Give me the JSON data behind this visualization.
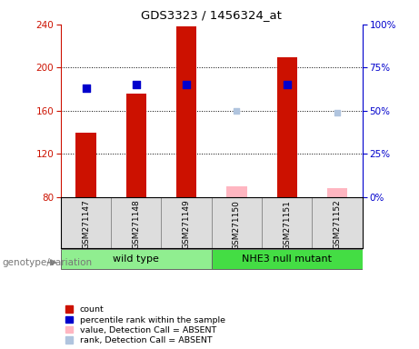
{
  "title": "GDS3323 / 1456324_at",
  "samples": [
    "GSM271147",
    "GSM271148",
    "GSM271149",
    "GSM271150",
    "GSM271151",
    "GSM271152"
  ],
  "count_values": [
    140,
    176,
    238,
    null,
    210,
    null
  ],
  "count_absent_values": [
    null,
    null,
    null,
    90,
    null,
    88
  ],
  "rank_values": [
    63,
    65,
    65,
    null,
    65,
    null
  ],
  "rank_absent_values": [
    null,
    null,
    null,
    50,
    null,
    49
  ],
  "ylim_left": [
    80,
    240
  ],
  "ylim_right": [
    0,
    100
  ],
  "yticks_left": [
    80,
    120,
    160,
    200,
    240
  ],
  "yticks_right": [
    0,
    25,
    50,
    75,
    100
  ],
  "groups": [
    {
      "label": "wild type",
      "indices": [
        0,
        1,
        2
      ],
      "color": "#90EE90"
    },
    {
      "label": "NHE3 null mutant",
      "indices": [
        3,
        4,
        5
      ],
      "color": "#44DD44"
    }
  ],
  "bar_width": 0.4,
  "rank_marker_size": 35,
  "absent_marker_size": 25,
  "color_count": "#CC1100",
  "color_rank": "#0000CC",
  "color_count_absent": "#FFB6C1",
  "color_rank_absent": "#B0C4DE",
  "bg_color": "#CCCCCC",
  "plot_bg": "#FFFFFF",
  "legend_items": [
    {
      "label": "count",
      "color": "#CC1100"
    },
    {
      "label": "percentile rank within the sample",
      "color": "#0000CC"
    },
    {
      "label": "value, Detection Call = ABSENT",
      "color": "#FFB6C1"
    },
    {
      "label": "rank, Detection Call = ABSENT",
      "color": "#B0C4DE"
    }
  ],
  "genotype_label": "genotype/variation"
}
